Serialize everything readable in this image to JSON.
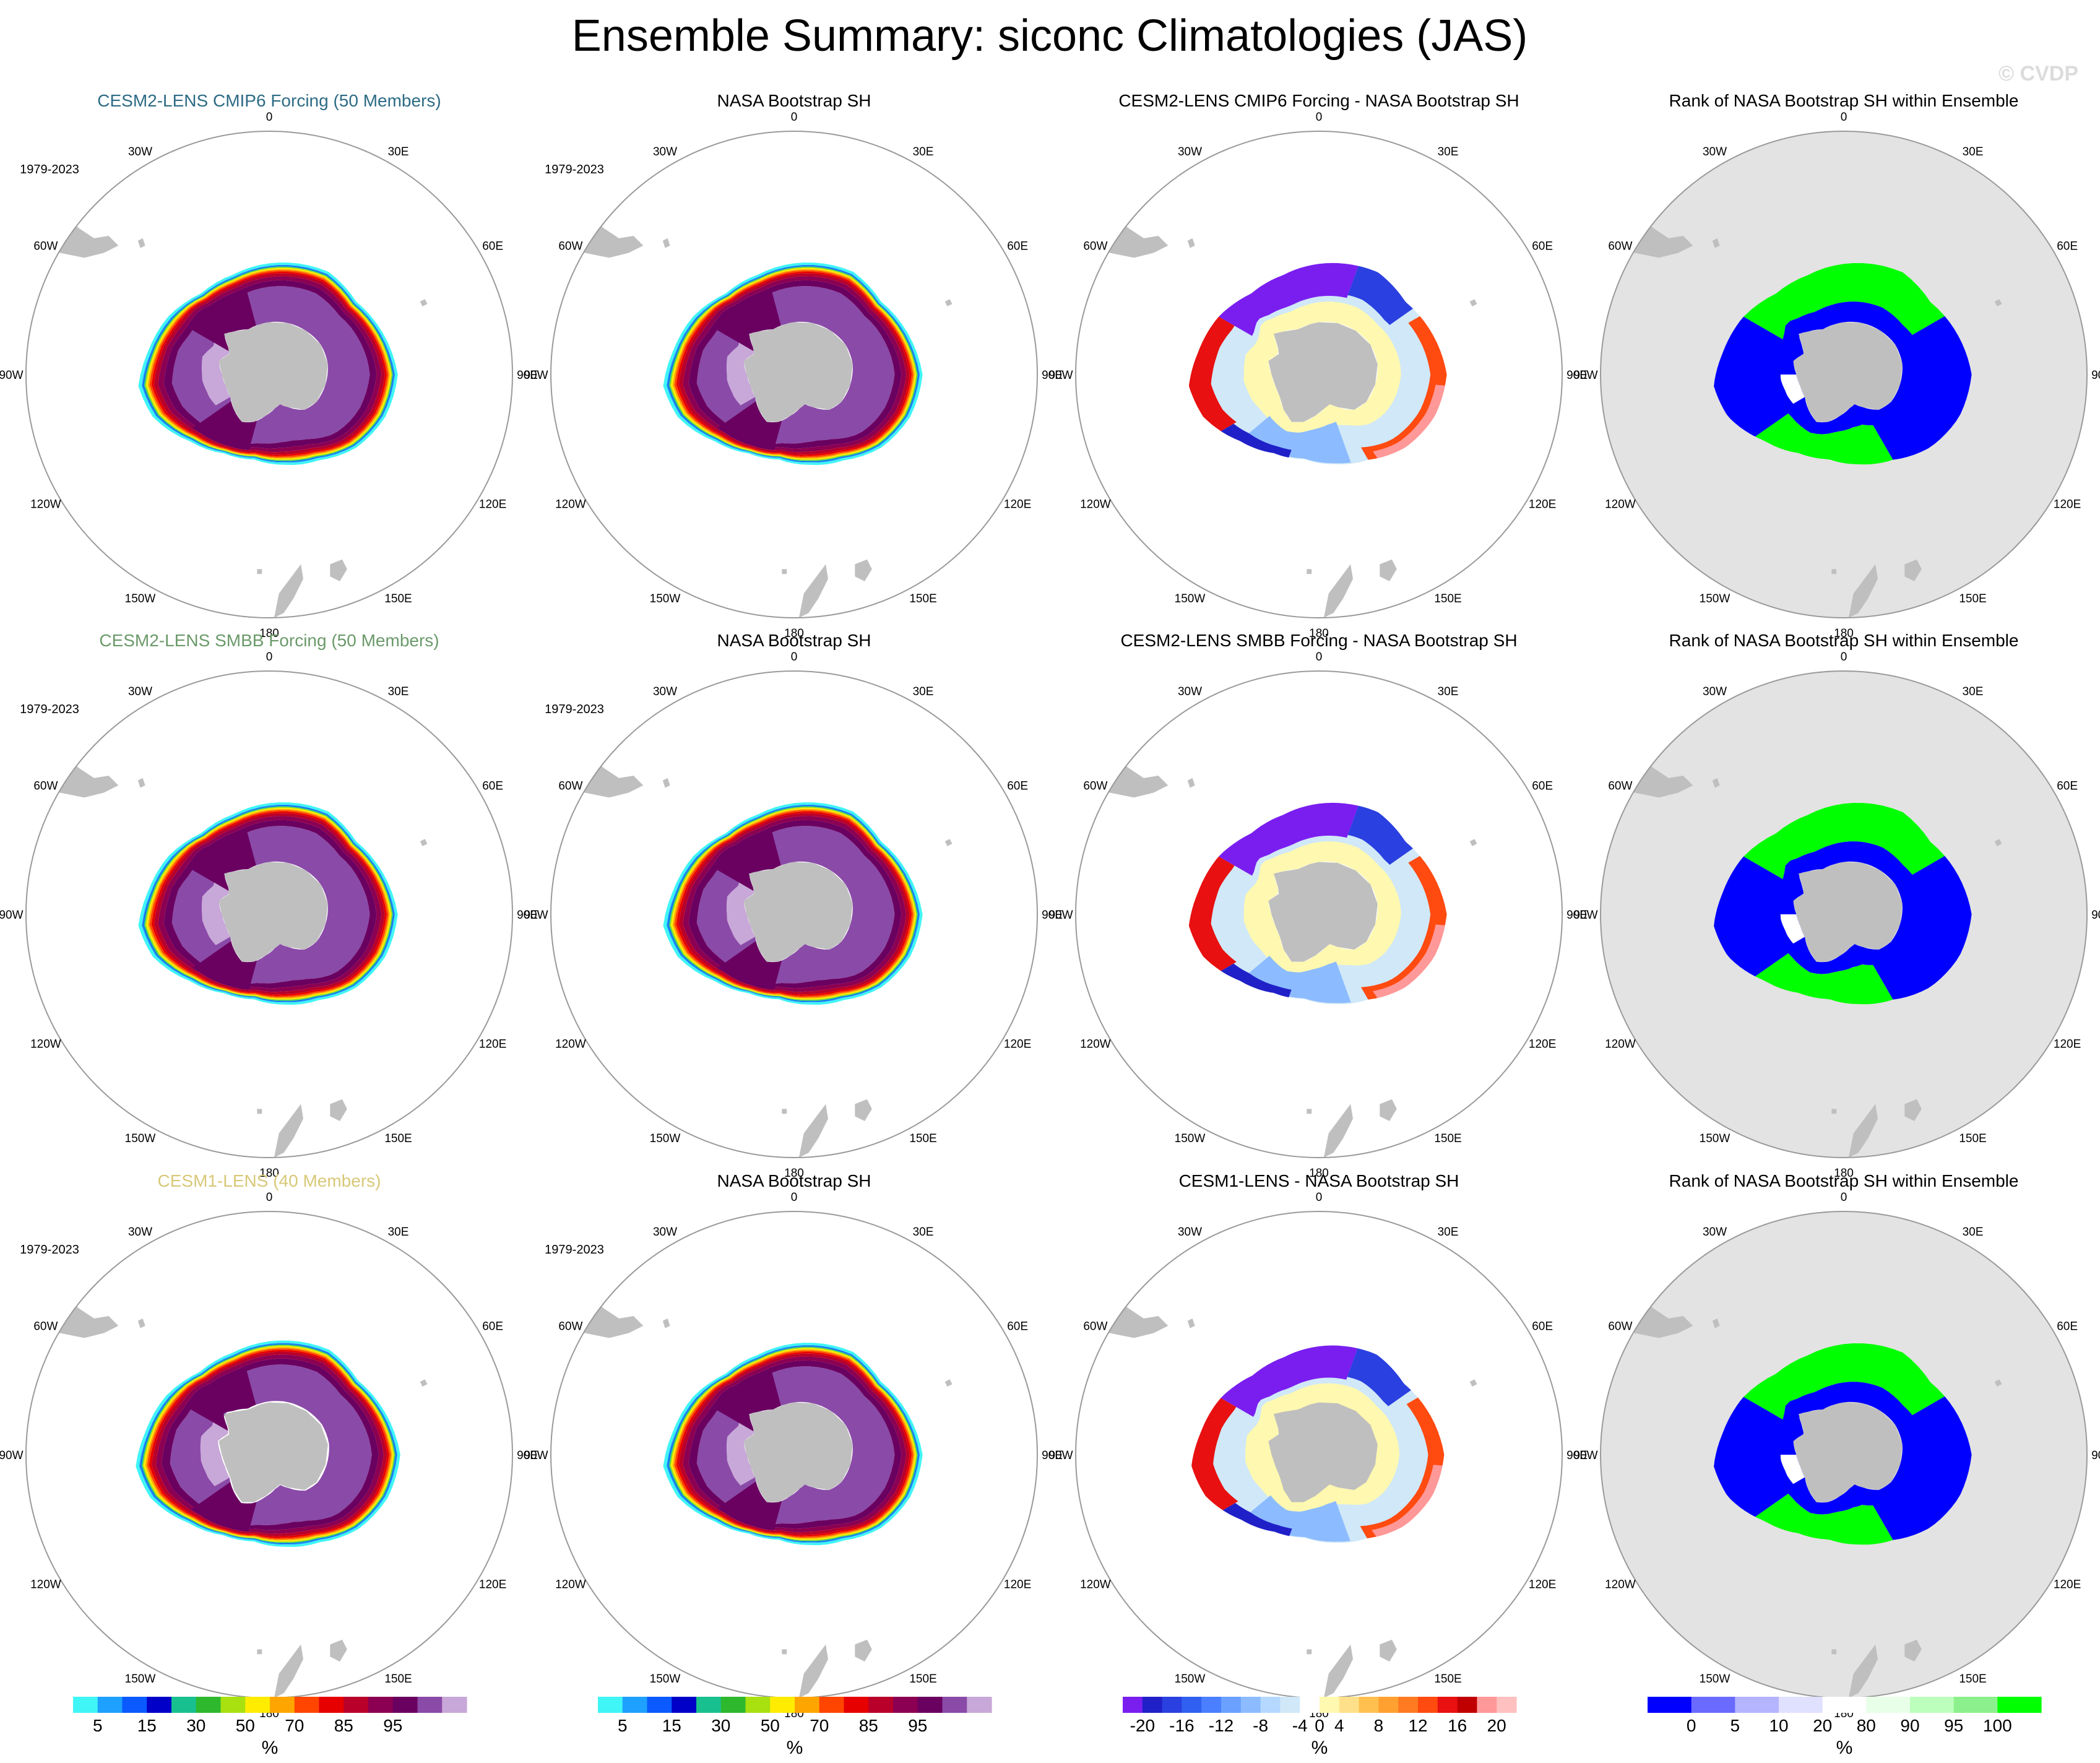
{
  "figure": {
    "title": "Ensemble Summary: siconc Climatologies (JAS)",
    "watermark": "© CVDP",
    "period_label": "1979-2023",
    "longitude_labels": [
      "0",
      "30E",
      "60E",
      "90E",
      "120E",
      "150E",
      "180",
      "150W",
      "120W",
      "90W",
      "60W",
      "30W"
    ]
  },
  "colors": {
    "title_row1": "#2d6b85",
    "title_row2": "#6b9a6b",
    "title_row3": "#d8c878",
    "land": "#bfbfbf",
    "rank_background": "#e3e3e3",
    "circle": "#9a9a9a"
  },
  "chart_data": [
    {
      "type": "heatmap",
      "panel": "r1c1",
      "title": "CESM2-LENS CMIP6 Forcing (50 Members)",
      "title_color": "title_row1",
      "kind": "conc",
      "show_period": true,
      "extent": 1.0
    },
    {
      "type": "heatmap",
      "panel": "r1c2",
      "title": "NASA Bootstrap SH",
      "kind": "conc",
      "show_period": true,
      "extent": 1.0
    },
    {
      "type": "heatmap",
      "panel": "r1c3",
      "title": "CESM2-LENS CMIP6 Forcing - NASA Bootstrap SH",
      "kind": "diff",
      "show_period": false,
      "extent": 1.0
    },
    {
      "type": "heatmap",
      "panel": "r1c4",
      "title": "Rank of NASA Bootstrap SH within Ensemble",
      "kind": "rank",
      "show_period": false,
      "extent": 1.0
    },
    {
      "type": "heatmap",
      "panel": "r2c1",
      "title": "CESM2-LENS SMBB Forcing (50 Members)",
      "title_color": "title_row2",
      "kind": "conc",
      "show_period": true,
      "extent": 1.0
    },
    {
      "type": "heatmap",
      "panel": "r2c2",
      "title": "NASA Bootstrap SH",
      "kind": "conc",
      "show_period": true,
      "extent": 1.0
    },
    {
      "type": "heatmap",
      "panel": "r2c3",
      "title": "CESM2-LENS SMBB Forcing - NASA Bootstrap SH",
      "kind": "diff",
      "show_period": false,
      "extent": 1.0
    },
    {
      "type": "heatmap",
      "panel": "r2c4",
      "title": "Rank of NASA Bootstrap SH within Ensemble",
      "kind": "rank",
      "show_period": false,
      "extent": 1.0
    },
    {
      "type": "heatmap",
      "panel": "r3c1",
      "title": "CESM1-LENS (40 Members)",
      "title_color": "title_row3",
      "kind": "conc",
      "show_period": true,
      "extent": 1.02
    },
    {
      "type": "heatmap",
      "panel": "r3c2",
      "title": "NASA Bootstrap SH",
      "kind": "conc",
      "show_period": true,
      "extent": 1.0
    },
    {
      "type": "heatmap",
      "panel": "r3c3",
      "title": "CESM1-LENS - NASA Bootstrap SH",
      "kind": "diff",
      "show_period": false,
      "extent": 0.98
    },
    {
      "type": "heatmap",
      "panel": "r3c4",
      "title": "Rank of NASA Bootstrap SH within Ensemble",
      "kind": "rank",
      "show_period": false,
      "extent": 1.0
    }
  ],
  "colorbars": [
    {
      "name": "concentration",
      "unit": "%",
      "colors": [
        "#3ff5f5",
        "#1ea0ff",
        "#0a5aff",
        "#0000c8",
        "#18c090",
        "#2eb82e",
        "#a8e010",
        "#ffec00",
        "#ffa500",
        "#ff4500",
        "#e60000",
        "#b8002a",
        "#8b0052",
        "#6a0060",
        "#8a4aa8",
        "#c8a8d8"
      ],
      "tick_labels": [
        "5",
        "15",
        "30",
        "50",
        "70",
        "85",
        "95"
      ],
      "tick_boundaries": [
        1,
        3,
        5,
        7,
        9,
        11,
        13
      ]
    },
    {
      "name": "difference",
      "unit": "%",
      "colors": [
        "#7a1ef0",
        "#2020c8",
        "#2a40e0",
        "#3060f0",
        "#4a80ff",
        "#6aa0ff",
        "#8cbcff",
        "#b4d8ff",
        "#d0e8f8",
        "#ffffff",
        "#fff8b0",
        "#ffe08a",
        "#ffc050",
        "#ffa030",
        "#ff7a20",
        "#ff4a10",
        "#e81010",
        "#c00000",
        "#ff9898",
        "#ffc0c0"
      ],
      "tick_labels": [
        "-20",
        "-16",
        "-12",
        "-8",
        "-4",
        "0",
        "4",
        "8",
        "12",
        "16",
        "20"
      ],
      "tick_boundaries": [
        1,
        3,
        5,
        7,
        9,
        10,
        11,
        13,
        15,
        17,
        19
      ]
    },
    {
      "name": "rank",
      "unit": "%",
      "colors": [
        "#0000ff",
        "#6a6aff",
        "#b4b4ff",
        "#e0e0ff",
        "#ffffff",
        "#e8ffe8",
        "#bcffbc",
        "#8cf08c",
        "#00ff00"
      ],
      "tick_labels": [
        "0",
        "5",
        "10",
        "20",
        "80",
        "90",
        "95",
        "100"
      ],
      "tick_boundaries": [
        1,
        2,
        3,
        4,
        5,
        6,
        7,
        8
      ]
    }
  ]
}
